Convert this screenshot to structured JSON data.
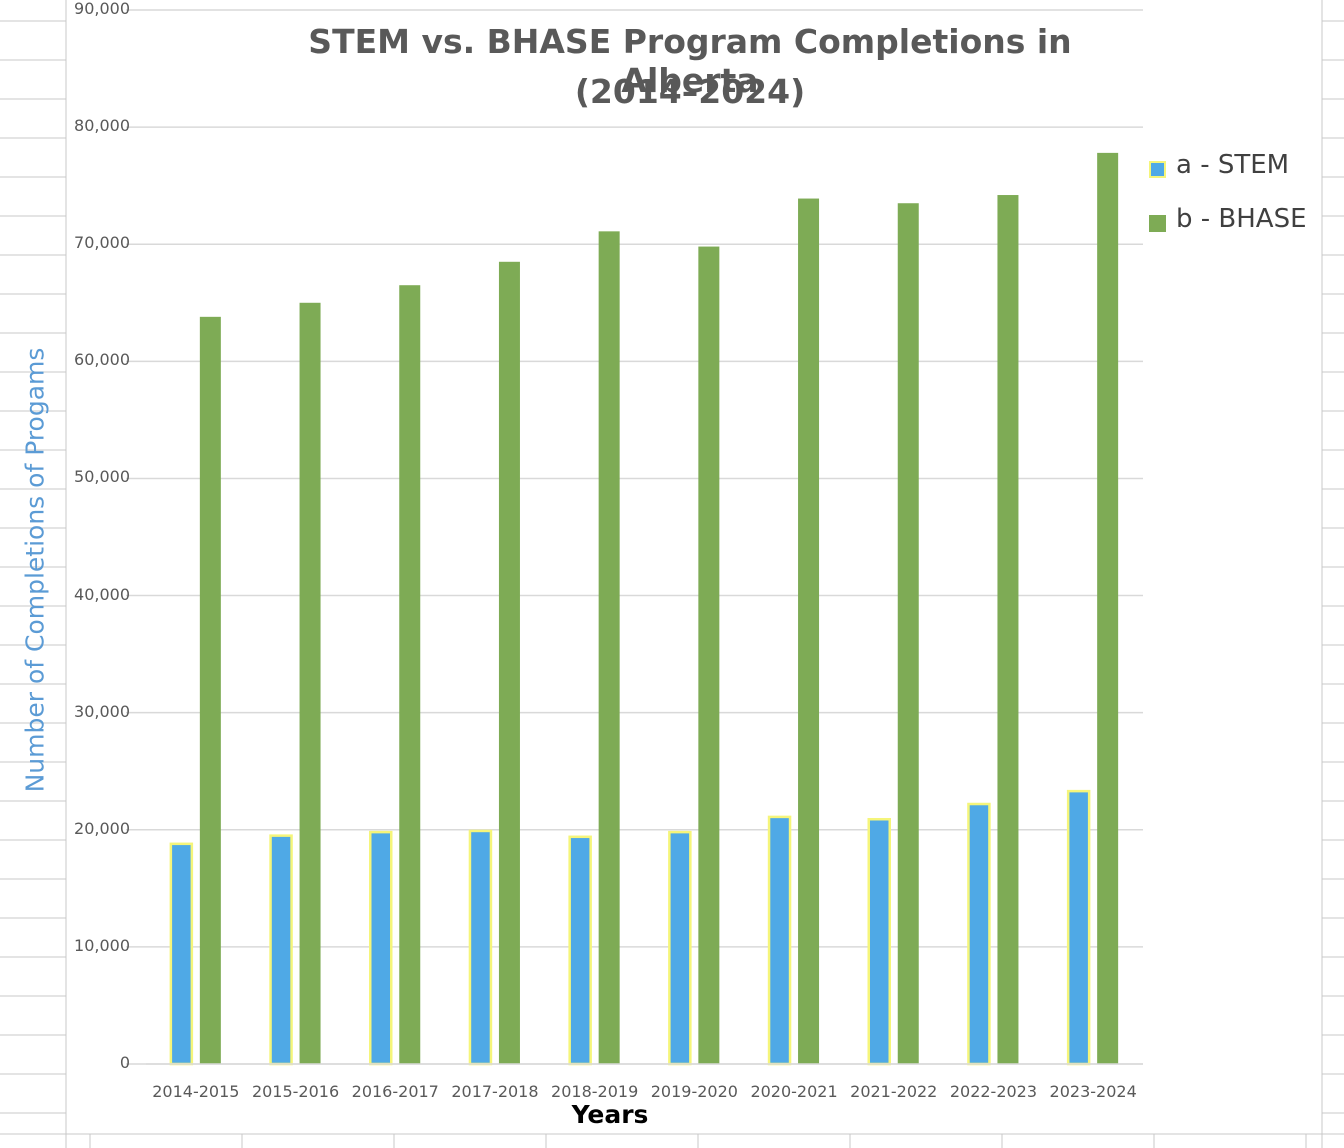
{
  "colors": {
    "stem_fill": "#4fa9e6",
    "stem_border": "#f5f57a",
    "bhase_fill": "#7eab55",
    "grid": "#d9d9d9",
    "sheet_grid": "#c8c8c8",
    "y_label": "#5b9bd5"
  },
  "chart_data": {
    "type": "bar",
    "title_lines": [
      "STEM vs. BHASE Program Completions in Alberta",
      "(2014–2024)"
    ],
    "xlabel": "Years",
    "ylabel": "Number of Completions of Progams",
    "categories": [
      "2014-2015",
      "2015-2016",
      "2016-2017",
      "2017-2018",
      "2018-2019",
      "2019-2020",
      "2020-2021",
      "2021-2022",
      "2022-2023",
      "2023-2024"
    ],
    "series": [
      {
        "name": "a - STEM",
        "values": [
          18800,
          19500,
          19800,
          19900,
          19400,
          19800,
          21100,
          20900,
          22200,
          23300
        ]
      },
      {
        "name": "b - BHASE",
        "values": [
          63800,
          65000,
          66500,
          68500,
          71100,
          69800,
          73900,
          73500,
          74200,
          77800
        ]
      }
    ],
    "ylim": [
      0,
      90000
    ],
    "y_ticks": [
      "0",
      "10,000",
      "20,000",
      "30,000",
      "40,000",
      "50,000",
      "60,000",
      "70,000",
      "80,000",
      "90,000"
    ],
    "grid": true,
    "legend_position": "right"
  }
}
